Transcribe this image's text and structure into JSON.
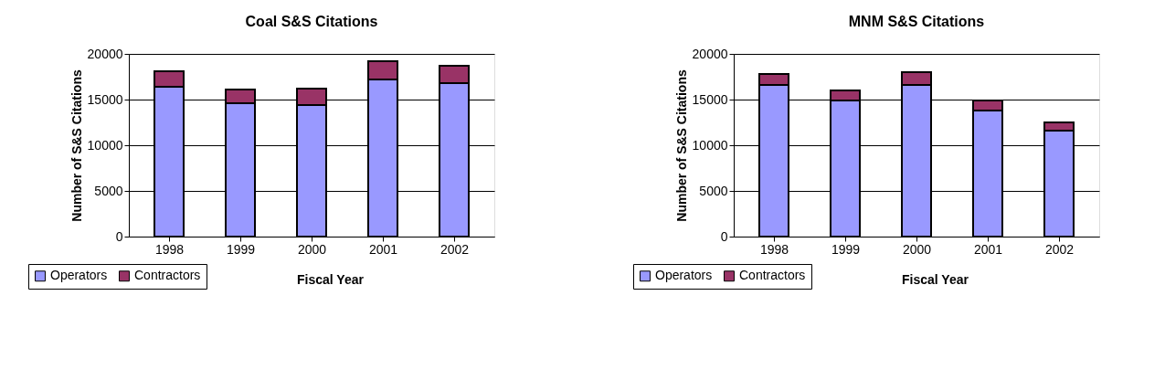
{
  "chart_data": [
    {
      "type": "bar",
      "title": "Coal S&S Citations",
      "xlabel": "Fiscal Year",
      "ylabel": "Number of S&S Citations",
      "categories": [
        "1998",
        "1999",
        "2000",
        "2001",
        "2002"
      ],
      "stacked": true,
      "series": [
        {
          "name": "Operators",
          "color": "#9999ff",
          "values": [
            16400,
            14600,
            14400,
            17200,
            16800
          ]
        },
        {
          "name": "Contractors",
          "color": "#993366",
          "values": [
            1700,
            1500,
            1800,
            2000,
            1900
          ]
        }
      ],
      "ylim": [
        0,
        20000
      ],
      "yticks": [
        0,
        5000,
        10000,
        15000,
        20000
      ],
      "grid": "y",
      "legend": "bottom left"
    },
    {
      "type": "bar",
      "title": "MNM S&S Citations",
      "xlabel": "Fiscal Year",
      "ylabel": "Number of S&S Citations",
      "categories": [
        "1998",
        "1999",
        "2000",
        "2001",
        "2002"
      ],
      "stacked": true,
      "series": [
        {
          "name": "Operators",
          "color": "#9999ff",
          "values": [
            16600,
            14900,
            16600,
            13800,
            11600
          ]
        },
        {
          "name": "Contractors",
          "color": "#993366",
          "values": [
            1200,
            1100,
            1400,
            1100,
            900
          ]
        }
      ],
      "ylim": [
        0,
        20000
      ],
      "yticks": [
        0,
        5000,
        10000,
        15000,
        20000
      ],
      "grid": "y",
      "legend": "bottom left"
    }
  ]
}
